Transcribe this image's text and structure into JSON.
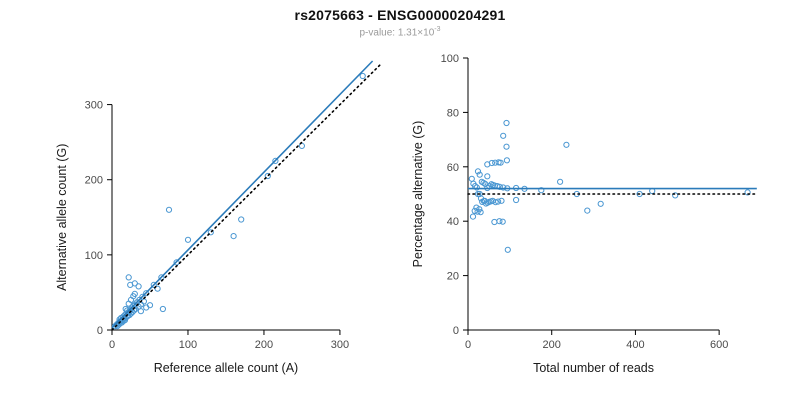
{
  "header": {
    "title": "rs2075663 - ENSG00000204291",
    "subtitle_prefix": "p-value: 1.31×10",
    "subtitle_exponent": "-3"
  },
  "colors": {
    "point": "#4a97d2",
    "fit_line": "#2b7bba",
    "identity_line": "#000000",
    "axis": "#000000",
    "tick_label": "#4a4a4a",
    "axis_label": "#1a1a1a"
  },
  "chart_data": [
    {
      "type": "scatter",
      "xlabel": "Reference allele count (A)",
      "ylabel": "Alternative allele count (G)",
      "xlim": [
        0,
        358
      ],
      "ylim": [
        0,
        358
      ],
      "xticks": [
        0,
        100,
        200,
        300
      ],
      "yticks": [
        0,
        100,
        200,
        300
      ],
      "grid": false,
      "legend": "none",
      "points": [
        [
          4,
          5
        ],
        [
          6,
          7
        ],
        [
          7,
          5
        ],
        [
          8,
          9
        ],
        [
          9,
          7
        ],
        [
          10,
          11
        ],
        [
          10,
          14
        ],
        [
          11,
          9
        ],
        [
          12,
          12
        ],
        [
          12,
          16
        ],
        [
          13,
          10
        ],
        [
          14,
          14
        ],
        [
          15,
          12
        ],
        [
          15,
          18
        ],
        [
          16,
          15
        ],
        [
          17,
          13
        ],
        [
          17,
          20
        ],
        [
          18,
          16
        ],
        [
          19,
          22
        ],
        [
          20,
          18
        ],
        [
          20,
          26
        ],
        [
          21,
          19
        ],
        [
          22,
          24
        ],
        [
          23,
          20
        ],
        [
          24,
          27
        ],
        [
          25,
          22
        ],
        [
          26,
          30
        ],
        [
          27,
          24
        ],
        [
          28,
          32
        ],
        [
          29,
          26
        ],
        [
          30,
          34
        ],
        [
          31,
          28
        ],
        [
          33,
          37
        ],
        [
          35,
          31
        ],
        [
          36,
          40
        ],
        [
          38,
          34
        ],
        [
          40,
          44
        ],
        [
          42,
          38
        ],
        [
          45,
          49
        ],
        [
          22,
          35
        ],
        [
          18,
          28
        ],
        [
          25,
          40
        ],
        [
          30,
          48
        ],
        [
          28,
          45
        ],
        [
          22,
          70
        ],
        [
          24,
          60
        ],
        [
          30,
          62
        ],
        [
          35,
          58
        ],
        [
          38,
          25
        ],
        [
          45,
          30
        ],
        [
          50,
          33
        ],
        [
          67,
          28
        ],
        [
          55,
          60
        ],
        [
          60,
          55
        ],
        [
          65,
          70
        ],
        [
          75,
          160
        ],
        [
          85,
          90
        ],
        [
          100,
          120
        ],
        [
          130,
          130
        ],
        [
          160,
          125
        ],
        [
          170,
          147
        ],
        [
          205,
          205
        ],
        [
          215,
          225
        ],
        [
          250,
          245
        ],
        [
          330,
          338
        ]
      ],
      "lines": [
        {
          "name": "fit-line",
          "style": "solid",
          "color": "#2b7bba",
          "x1": 0,
          "y1": 3,
          "x2": 343,
          "y2": 358
        },
        {
          "name": "identity-line",
          "style": "dotted",
          "color": "#000000",
          "x1": 0,
          "y1": 0,
          "x2": 355,
          "y2": 355
        }
      ]
    },
    {
      "type": "scatter",
      "xlabel": "Total number of reads",
      "ylabel": "Percentage alternative (G)",
      "xlim": [
        0,
        700
      ],
      "ylim": [
        0,
        100
      ],
      "xticks": [
        0,
        200,
        400,
        600
      ],
      "yticks": [
        0,
        20,
        40,
        60,
        80,
        100
      ],
      "grid": false,
      "legend": "none",
      "points": [
        [
          9,
          55.6
        ],
        [
          13,
          53.8
        ],
        [
          12,
          41.7
        ],
        [
          17,
          52.9
        ],
        [
          16,
          43.8
        ],
        [
          21,
          52.4
        ],
        [
          24,
          58.3
        ],
        [
          20,
          45
        ],
        [
          24,
          50
        ],
        [
          28,
          57.1
        ],
        [
          23,
          43.5
        ],
        [
          28,
          50
        ],
        [
          27,
          44.4
        ],
        [
          33,
          54.5
        ],
        [
          31,
          48.4
        ],
        [
          30,
          43.3
        ],
        [
          37,
          54.1
        ],
        [
          34,
          47.1
        ],
        [
          41,
          53.7
        ],
        [
          38,
          47.4
        ],
        [
          46,
          56.5
        ],
        [
          40,
          47.5
        ],
        [
          46,
          52.2
        ],
        [
          43,
          46.5
        ],
        [
          51,
          52.9
        ],
        [
          47,
          46.8
        ],
        [
          56,
          53.6
        ],
        [
          51,
          47.1
        ],
        [
          60,
          53.3
        ],
        [
          55,
          47.3
        ],
        [
          64,
          53.1
        ],
        [
          59,
          47.5
        ],
        [
          70,
          52.9
        ],
        [
          66,
          47
        ],
        [
          76,
          52.6
        ],
        [
          72,
          47.2
        ],
        [
          84,
          52.4
        ],
        [
          80,
          47.5
        ],
        [
          94,
          52.1
        ],
        [
          57,
          61.4
        ],
        [
          46,
          60.9
        ],
        [
          65,
          61.5
        ],
        [
          78,
          61.5
        ],
        [
          73,
          61.6
        ],
        [
          92,
          76.1
        ],
        [
          84,
          71.4
        ],
        [
          92,
          67.4
        ],
        [
          93,
          62.4
        ],
        [
          63,
          39.7
        ],
        [
          75,
          40
        ],
        [
          83,
          39.8
        ],
        [
          95,
          29.5
        ],
        [
          115,
          52.2
        ],
        [
          115,
          47.8
        ],
        [
          135,
          51.9
        ],
        [
          235,
          68.1
        ],
        [
          175,
          51.4
        ],
        [
          220,
          54.5
        ],
        [
          260,
          50
        ],
        [
          285,
          43.9
        ],
        [
          317,
          46.4
        ],
        [
          410,
          50
        ],
        [
          440,
          51.1
        ],
        [
          495,
          49.5
        ],
        [
          668,
          50.6
        ]
      ],
      "lines": [
        {
          "name": "fit-line",
          "style": "solid",
          "color": "#2b7bba",
          "x1": 0,
          "y1": 52,
          "x2": 690,
          "y2": 52
        },
        {
          "name": "identity-line",
          "style": "dotted",
          "color": "#000000",
          "x1": 0,
          "y1": 50,
          "x2": 690,
          "y2": 50
        }
      ]
    }
  ]
}
